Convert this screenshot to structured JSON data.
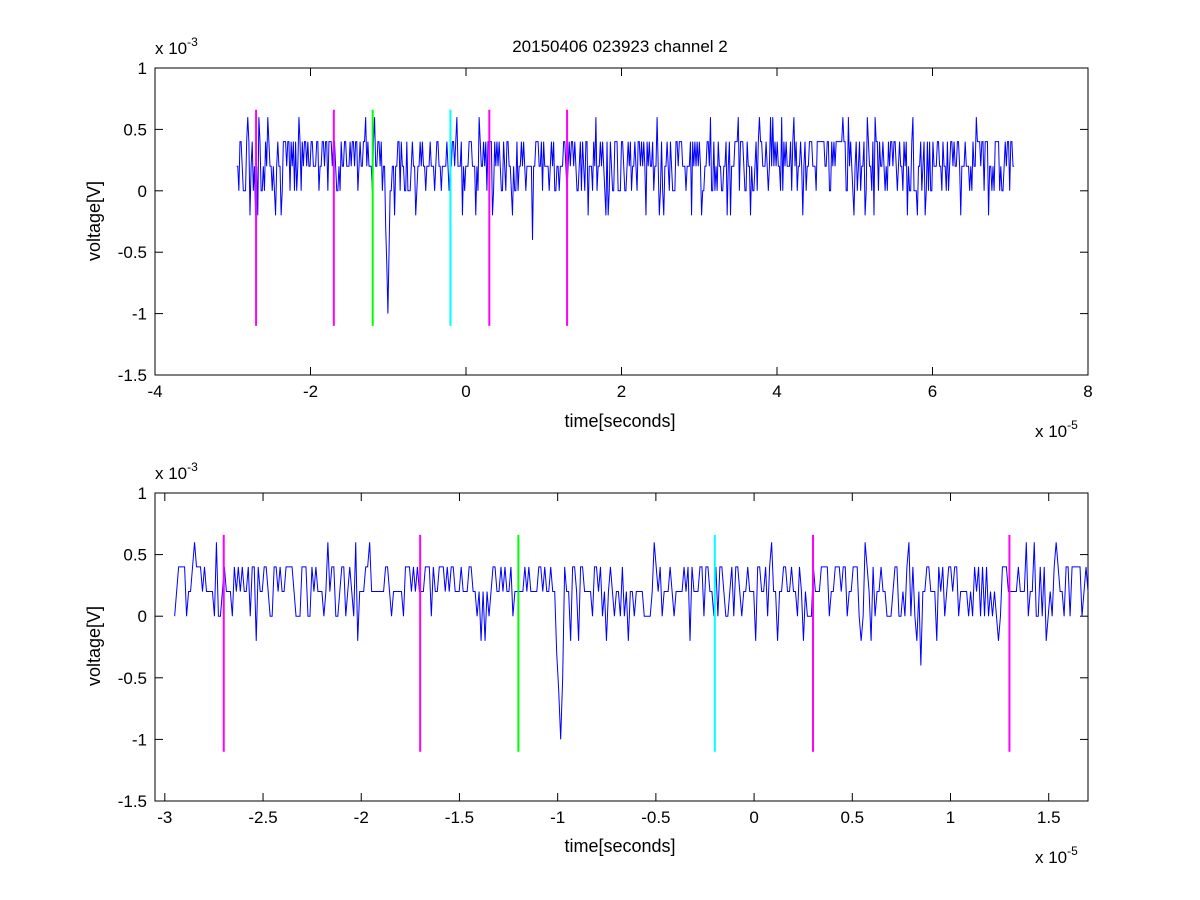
{
  "figure_title": "20150406 023923 channel 2",
  "colors": {
    "signal": "#0000ff",
    "magenta": "#ff00ff",
    "green": "#00ff00",
    "cyan": "#00ffff",
    "axes": "#000000"
  },
  "chart_data": [
    {
      "type": "line",
      "title": "20150406 023923 channel 2",
      "xlabel": "time[seconds]",
      "ylabel": "voltage[V]",
      "x_exponent_label": "x 10",
      "x_exponent": "-5",
      "y_exponent_label": "x 10",
      "y_exponent": "-3",
      "xlim": [
        -4,
        8
      ],
      "ylim": [
        -1.5,
        1
      ],
      "xticks": [
        -4,
        -2,
        0,
        2,
        4,
        6,
        8
      ],
      "xtick_labels": [
        "-4",
        "-2",
        "0",
        "2",
        "4",
        "6",
        "8"
      ],
      "yticks": [
        -1.5,
        -1,
        -0.5,
        0,
        0.5,
        1
      ],
      "ytick_labels": [
        "-1.5",
        "-1",
        "-0.5",
        "0",
        "0.5",
        "1"
      ],
      "grid": false,
      "signal_range": [
        -2.95,
        7.05
      ],
      "signal_samples": 700,
      "signal_baseline": 0.2,
      "signal_levels": [
        -0.2,
        0,
        0.2,
        0.4,
        0.6
      ],
      "spikes": [
        {
          "x": -1.0,
          "y": -1.0
        },
        {
          "x": 0.85,
          "y": -0.4
        },
        {
          "x": -0.65,
          "y": -0.2
        },
        {
          "x": 0.6,
          "y": -0.2
        },
        {
          "x": -2.15,
          "y": 0.6
        },
        {
          "x": -2.8,
          "y": 0.6
        },
        {
          "x": -2.55,
          "y": 0.6
        },
        {
          "x": 4.85,
          "y": 0.6
        },
        {
          "x": 5.75,
          "y": 0.6
        }
      ],
      "markers": [
        {
          "x": -2.7,
          "color": "magenta",
          "ymin": -1.1,
          "ymax": 0.66
        },
        {
          "x": -1.7,
          "color": "magenta",
          "ymin": -1.1,
          "ymax": 0.66
        },
        {
          "x": -1.2,
          "color": "green",
          "ymin": -1.1,
          "ymax": 0.66
        },
        {
          "x": -0.2,
          "color": "cyan",
          "ymin": -1.1,
          "ymax": 0.66
        },
        {
          "x": 0.3,
          "color": "magenta",
          "ymin": -1.1,
          "ymax": 0.66
        },
        {
          "x": 1.3,
          "color": "magenta",
          "ymin": -1.1,
          "ymax": 0.66
        }
      ]
    },
    {
      "type": "line",
      "title": "",
      "xlabel": "time[seconds]",
      "ylabel": "voltage[V]",
      "x_exponent_label": "x 10",
      "x_exponent": "-5",
      "y_exponent_label": "x 10",
      "y_exponent": "-3",
      "xlim": [
        -3.05,
        1.7
      ],
      "ylim": [
        -1.5,
        1
      ],
      "xticks": [
        -3,
        -2.5,
        -2,
        -1.5,
        -1,
        -0.5,
        0,
        0.5,
        1,
        1.5
      ],
      "xtick_labels": [
        "-3",
        "-2.5",
        "-2",
        "-1.5",
        "-1",
        "-0.5",
        "0",
        "0.5",
        "1",
        "1.5"
      ],
      "yticks": [
        -1.5,
        -1,
        -0.5,
        0,
        0.5,
        1
      ],
      "ytick_labels": [
        "-1.5",
        "-1",
        "-0.5",
        "0",
        "0.5",
        "1"
      ],
      "grid": false,
      "signal_range": [
        -2.95,
        1.7
      ],
      "signal_samples": 460,
      "signal_baseline": 0.2,
      "signal_levels": [
        -0.2,
        0,
        0.2,
        0.4,
        0.6
      ],
      "spikes": [
        {
          "x": -2.85,
          "y": 0.6
        },
        {
          "x": -2.17,
          "y": 0.6
        },
        {
          "x": -0.98,
          "y": -1.0
        },
        {
          "x": -0.64,
          "y": -0.2
        },
        {
          "x": 0.6,
          "y": -0.2
        },
        {
          "x": 0.85,
          "y": -0.4
        },
        {
          "x": -1.45,
          "y": 0.4
        },
        {
          "x": -1.15,
          "y": 0.4
        }
      ],
      "markers": [
        {
          "x": -2.7,
          "color": "magenta",
          "ymin": -1.1,
          "ymax": 0.66
        },
        {
          "x": -1.7,
          "color": "magenta",
          "ymin": -1.1,
          "ymax": 0.66
        },
        {
          "x": -1.2,
          "color": "green",
          "ymin": -1.1,
          "ymax": 0.66
        },
        {
          "x": -0.2,
          "color": "cyan",
          "ymin": -1.1,
          "ymax": 0.66
        },
        {
          "x": 0.3,
          "color": "magenta",
          "ymin": -1.1,
          "ymax": 0.66
        },
        {
          "x": 1.3,
          "color": "magenta",
          "ymin": -1.1,
          "ymax": 0.66
        }
      ]
    }
  ]
}
